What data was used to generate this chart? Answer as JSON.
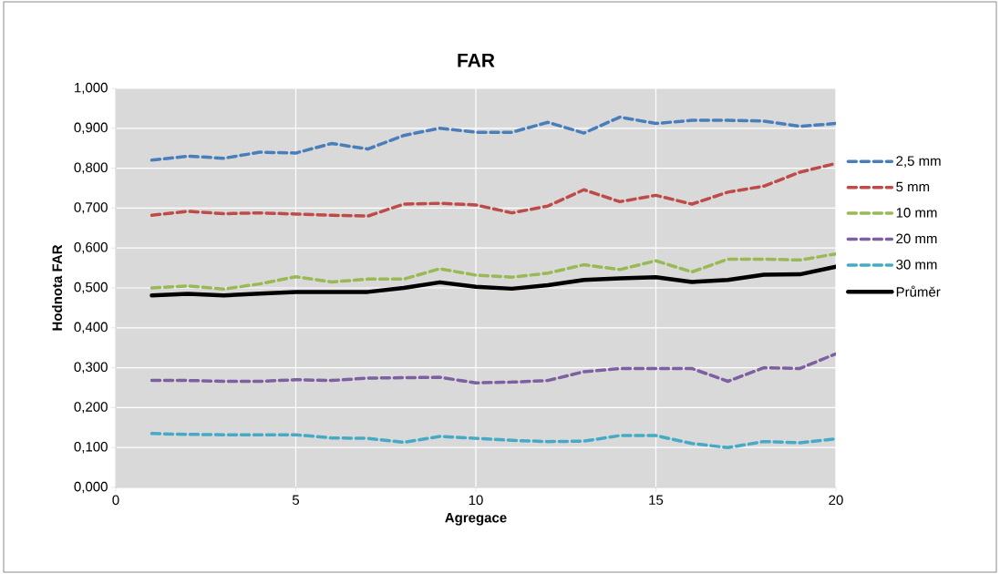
{
  "chart_data": {
    "type": "line",
    "title": "FAR",
    "xlabel": "Agregace",
    "ylabel": "Hodnota FAR",
    "x": [
      1,
      2,
      3,
      4,
      5,
      6,
      7,
      8,
      9,
      10,
      11,
      12,
      13,
      14,
      15,
      16,
      17,
      18,
      19,
      20
    ],
    "xlim": [
      0,
      20
    ],
    "xticks": [
      0,
      5,
      10,
      15,
      20
    ],
    "ylim": [
      0,
      1
    ],
    "yticks": [
      {
        "value": 0,
        "label": "0,000"
      },
      {
        "value": 0.1,
        "label": "0,100"
      },
      {
        "value": 0.2,
        "label": "0,200"
      },
      {
        "value": 0.3,
        "label": "0,300"
      },
      {
        "value": 0.4,
        "label": "0,400"
      },
      {
        "value": 0.5,
        "label": "0,500"
      },
      {
        "value": 0.6,
        "label": "0,600"
      },
      {
        "value": 0.7,
        "label": "0,700"
      },
      {
        "value": 0.8,
        "label": "0,800"
      },
      {
        "value": 0.9,
        "label": "0,900"
      },
      {
        "value": 1,
        "label": "1,000"
      }
    ],
    "grid": true,
    "legend": "right",
    "marker": "none",
    "series": [
      {
        "name": "2,5 mm",
        "color": "#4a7ebb",
        "line_style": "dashed",
        "values": [
          0.82,
          0.83,
          0.825,
          0.84,
          0.838,
          0.862,
          0.848,
          0.882,
          0.9,
          0.89,
          0.89,
          0.915,
          0.888,
          0.928,
          0.912,
          0.92,
          0.92,
          0.918,
          0.905,
          0.912
        ]
      },
      {
        "name": "5 mm",
        "color": "#be4b48",
        "line_style": "dashed",
        "values": [
          0.682,
          0.692,
          0.686,
          0.688,
          0.685,
          0.682,
          0.68,
          0.71,
          0.712,
          0.708,
          0.688,
          0.705,
          0.746,
          0.716,
          0.732,
          0.71,
          0.74,
          0.755,
          0.79,
          0.812
        ]
      },
      {
        "name": "10 mm",
        "color": "#98b954",
        "line_style": "dashed",
        "values": [
          0.5,
          0.505,
          0.497,
          0.51,
          0.528,
          0.515,
          0.522,
          0.522,
          0.548,
          0.532,
          0.527,
          0.537,
          0.558,
          0.546,
          0.568,
          0.54,
          0.572,
          0.572,
          0.57,
          0.585
        ]
      },
      {
        "name": "20 mm",
        "color": "#7d60a0",
        "line_style": "dashed",
        "values": [
          0.268,
          0.268,
          0.266,
          0.266,
          0.27,
          0.268,
          0.274,
          0.275,
          0.276,
          0.262,
          0.264,
          0.268,
          0.29,
          0.298,
          0.298,
          0.298,
          0.266,
          0.3,
          0.298,
          0.335
        ]
      },
      {
        "name": "30 mm",
        "color": "#46aac5",
        "line_style": "dashed",
        "values": [
          0.135,
          0.133,
          0.132,
          0.132,
          0.132,
          0.124,
          0.123,
          0.113,
          0.128,
          0.123,
          0.118,
          0.115,
          0.116,
          0.13,
          0.13,
          0.11,
          0.1,
          0.115,
          0.112,
          0.122
        ]
      },
      {
        "name": "Průměr",
        "color": "#000000",
        "line_style": "solid",
        "values": [
          0.481,
          0.485,
          0.481,
          0.486,
          0.49,
          0.49,
          0.49,
          0.5,
          0.514,
          0.503,
          0.498,
          0.507,
          0.52,
          0.524,
          0.527,
          0.515,
          0.52,
          0.533,
          0.534,
          0.553
        ]
      }
    ]
  }
}
